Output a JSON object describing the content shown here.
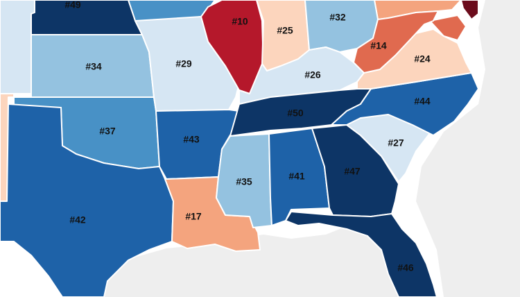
{
  "map": {
    "palette": {
      "navy": "#0d3566",
      "dark_blue": "#1e62a8",
      "mid_blue": "#4891c6",
      "light_blue": "#94c2e0",
      "pale_blue": "#d6e6f3",
      "peach": "#fcd5bd",
      "salmon": "#f4a47e",
      "orange_red": "#e06a4f",
      "red": "#b5182b",
      "dark_red": "#6b0c1c",
      "sea_gray": "#eeeeee",
      "land_white": "#ffffff"
    },
    "states": [
      {
        "key": "nebraska",
        "rank": "#49",
        "color": "navy"
      },
      {
        "key": "kansas",
        "rank": "#34",
        "color": "light_blue"
      },
      {
        "key": "oklahoma",
        "rank": "#37",
        "color": "mid_blue"
      },
      {
        "key": "texas",
        "rank": "#42",
        "color": "dark_blue"
      },
      {
        "key": "missouri",
        "rank": "#29",
        "color": "pale_blue"
      },
      {
        "key": "arkansas",
        "rank": "#43",
        "color": "dark_blue"
      },
      {
        "key": "louisiana",
        "rank": "#17",
        "color": "salmon"
      },
      {
        "key": "illinois",
        "rank": "#10",
        "color": "red"
      },
      {
        "key": "indiana",
        "rank": "#25",
        "color": "peach"
      },
      {
        "key": "ohio",
        "rank": "#32",
        "color": "light_blue"
      },
      {
        "key": "kentucky",
        "rank": "#26",
        "color": "pale_blue"
      },
      {
        "key": "tennessee",
        "rank": "#50",
        "color": "navy"
      },
      {
        "key": "mississippi",
        "rank": "#35",
        "color": "light_blue"
      },
      {
        "key": "alabama",
        "rank": "#41",
        "color": "dark_blue"
      },
      {
        "key": "georgia",
        "rank": "#47",
        "color": "navy"
      },
      {
        "key": "florida",
        "rank": "#46",
        "color": "navy"
      },
      {
        "key": "south_carolina",
        "rank": "#27",
        "color": "pale_blue"
      },
      {
        "key": "north_carolina",
        "rank": "#44",
        "color": "dark_blue"
      },
      {
        "key": "virginia",
        "rank": "#24",
        "color": "peach"
      },
      {
        "key": "west_virginia",
        "rank": "#14",
        "color": "orange_red"
      }
    ]
  }
}
